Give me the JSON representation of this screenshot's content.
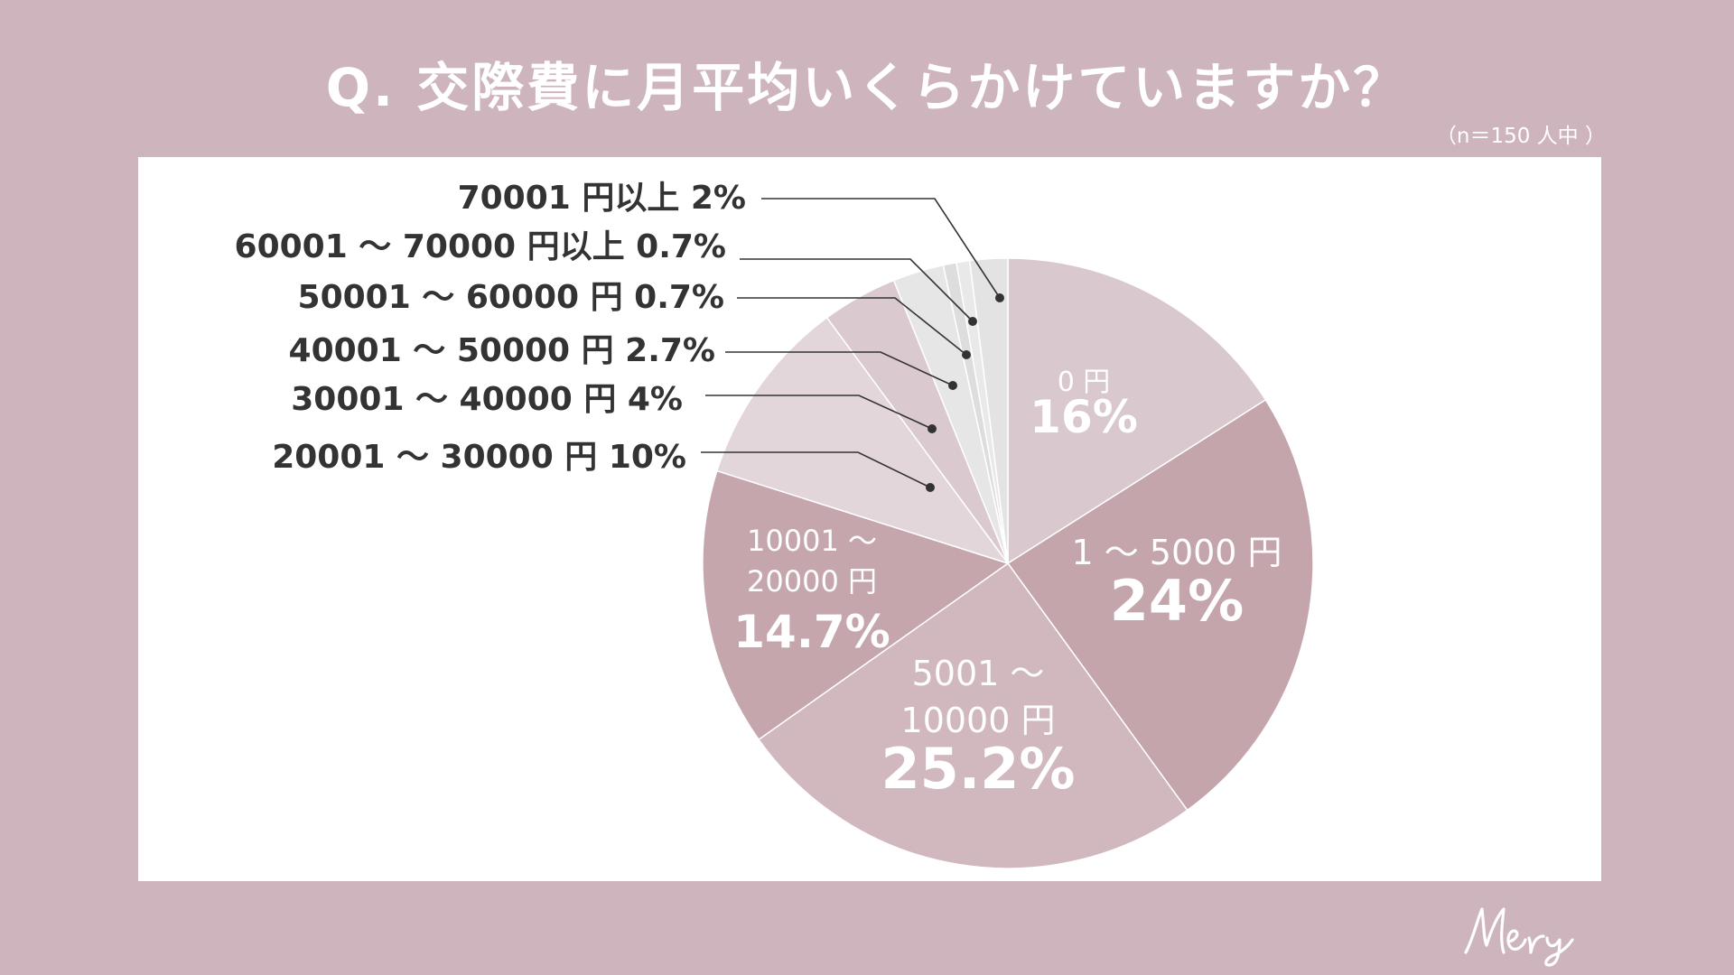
{
  "title": "Q. 交際費に月平均いくらかけていますか？",
  "sample_note": "（n＝150 人中 ）",
  "brand": "Mery",
  "colors": {
    "background": "#ceb5bd",
    "panel": "#ffffff",
    "outside_label_text": "#333333",
    "inside_label_text": "#ffffff",
    "leader_line": "#333333"
  },
  "chart_data": {
    "type": "pie",
    "start": "12 o'clock",
    "direction": "clockwise",
    "legend": "none",
    "unit": "%",
    "slices": [
      {
        "category_lines": [
          "0 円"
        ],
        "value": 16,
        "label": "16%",
        "color": "#d9c8cd",
        "label_position": "inside"
      },
      {
        "category_lines": [
          "1 ～ 5000 円"
        ],
        "value": 24,
        "label": "24%",
        "color": "#c4a5ab",
        "label_position": "inside"
      },
      {
        "category_lines": [
          "5001 ～",
          "10000 円"
        ],
        "value": 25.2,
        "label": "25.2%",
        "color": "#d0b8be",
        "label_position": "inside"
      },
      {
        "category_lines": [
          "10001 ～",
          "20000 円"
        ],
        "value": 14.7,
        "label": "14.7%",
        "color": "#c5a6ad",
        "label_position": "inside"
      },
      {
        "category_lines": [
          "20001 ～ 30000 円"
        ],
        "value": 10,
        "label": "10%",
        "color": "#e2d6da",
        "label_position": "outside",
        "text": "20001 ～ 30000 円 10%"
      },
      {
        "category_lines": [
          "30001 ～ 40000 円"
        ],
        "value": 4,
        "label": "4%",
        "color": "#dac9ce",
        "label_position": "outside",
        "text": "30001 ～ 40000 円 4%"
      },
      {
        "category_lines": [
          "40001 ～ 50000 円"
        ],
        "value": 2.7,
        "label": "2.7%",
        "color": "#e6e6e6",
        "label_position": "outside",
        "text": "40001 ～ 50000 円 2.7%"
      },
      {
        "category_lines": [
          "50001 ～ 60000 円"
        ],
        "value": 0.7,
        "label": "0.7%",
        "color": "#dddddd",
        "label_position": "outside",
        "text": "50001 ～ 60000 円 0.7%"
      },
      {
        "category_lines": [
          "60001 ～ 70000 円以上"
        ],
        "value": 0.7,
        "label": "0.7%",
        "color": "#e9e9e9",
        "label_position": "outside",
        "text": "60001 ～ 70000 円以上 0.7%"
      },
      {
        "category_lines": [
          "70001 円以上"
        ],
        "value": 2,
        "label": "2%",
        "color": "#e3e3e3",
        "label_position": "outside",
        "text": "70001 円以上 2%"
      }
    ]
  }
}
